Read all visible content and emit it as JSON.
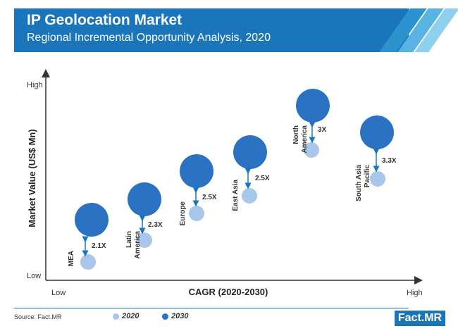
{
  "header": {
    "title": "IP Geolocation Market",
    "subtitle": "Regional Incremental Opportunity Analysis, 2020"
  },
  "colors": {
    "primary": "#1b75bb",
    "bubble_2030": "#2b72c2",
    "bubble_2020": "#a8c7ea",
    "arrow": "#1b75bb"
  },
  "chart_data": {
    "type": "bubble",
    "xlabel": "CAGR (2020-2030)",
    "ylabel": "Market Value (US$ Mn)",
    "x_tick_labels": [
      "Low",
      "High"
    ],
    "y_tick_labels": [
      "Low",
      "High"
    ],
    "regions": [
      {
        "name": "MEA",
        "multiplier": "2.1X"
      },
      {
        "name": "Latin America",
        "multiplier": "2.3X"
      },
      {
        "name": "Europe",
        "multiplier": "2.5X"
      },
      {
        "name": "East Asia",
        "multiplier": "2.5X"
      },
      {
        "name": "North America",
        "multiplier": "3X"
      },
      {
        "name": "South Asia Pacific",
        "multiplier": "3.3X"
      }
    ],
    "legend": [
      "2020",
      "2030"
    ]
  },
  "footer": {
    "source": "Source: Fact.MR",
    "logo": "Fact.MR"
  }
}
